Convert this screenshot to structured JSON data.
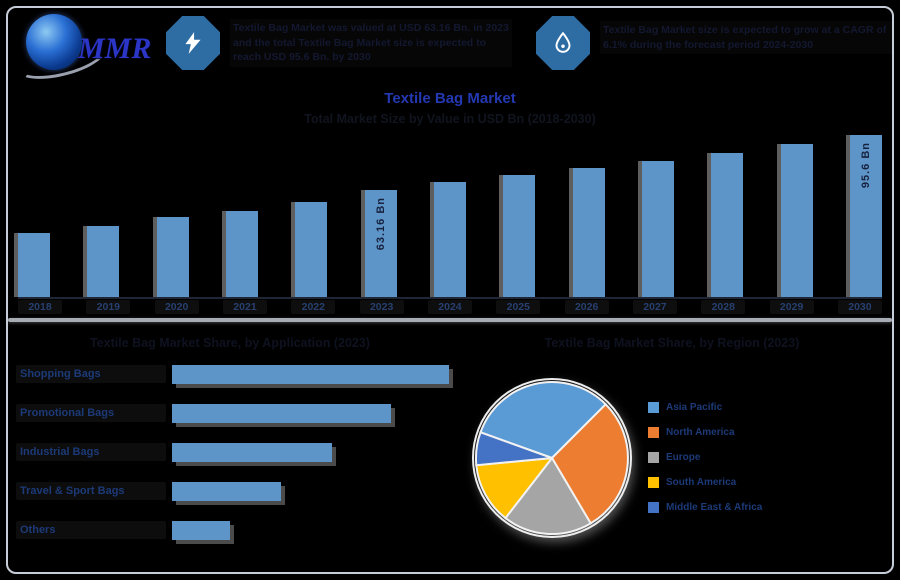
{
  "brand": {
    "name": "MMR"
  },
  "header": {
    "stat1": {
      "icon": "lightning-icon",
      "text": "Textile Bag Market was valued at USD 63.16 Bn. in 2023 and the total Textile Bag Market size is expected to reach USD 95.6 Bn. by 2030"
    },
    "stat2": {
      "icon": "droplet-icon",
      "text": "Textile Bag Market size is expected to grow at a CAGR of 6.1% during the forecast period 2024-2030"
    }
  },
  "main_chart": {
    "title": "Textile Bag Market",
    "subtitle": "Total Market Size by Value in USD Bn (2018-2030)"
  },
  "bottom_left": {
    "title": "Textile Bag Market Share, by Application (2023)"
  },
  "bottom_right": {
    "title": "Textile Bag Market Share, by Region (2023)"
  },
  "colors": {
    "bar_fill": "#5e95c9",
    "badge_fill": "#2e6da4",
    "title_blue": "#2438b2",
    "label_navy": "#1c3a78",
    "pie": [
      "#5b9bd5",
      "#ed7d31",
      "#a5a5a5",
      "#ffc000",
      "#4472c4"
    ]
  },
  "chart_data": [
    {
      "id": "market_size_by_year",
      "type": "bar",
      "title": "Textile Bag Market",
      "subtitle": "Total Market Size by Value in USD Bn (2018-2030)",
      "ylabel": "USD Bn",
      "categories": [
        "2018",
        "2019",
        "2020",
        "2021",
        "2022",
        "2023",
        "2024",
        "2025",
        "2026",
        "2027",
        "2028",
        "2029",
        "2030"
      ],
      "values": [
        38,
        42,
        47,
        51,
        56,
        63.16,
        68,
        72,
        76,
        80,
        85,
        90,
        95.6
      ],
      "data_labels": {
        "2023": "63.16 Bn",
        "2030": "95.6 Bn"
      },
      "note": "only 2023 and 2030 carry printed value labels; other values estimated from bar heights",
      "ylim": [
        0,
        100
      ],
      "grid": false
    },
    {
      "id": "share_by_application",
      "type": "bar",
      "orientation": "horizontal",
      "title": "Textile Bag Market Share, by Application (2023)",
      "categories": [
        "Shopping Bags",
        "Promotional Bags",
        "Industrial Bags",
        "Travel & Sport Bags",
        "Others"
      ],
      "values_pct_est": [
        38,
        30,
        22,
        15,
        8
      ],
      "note": "bars unlabeled; percentages estimated from bar lengths",
      "grid": false
    },
    {
      "id": "share_by_region",
      "type": "pie",
      "title": "Textile Bag Market Share, by Region (2023)",
      "labels": [
        "Asia Pacific",
        "North America",
        "Europe",
        "South America",
        "Middle East & Africa"
      ],
      "values_pct_est": [
        32,
        29,
        19,
        13,
        7
      ],
      "colors": [
        "#5b9bd5",
        "#ed7d31",
        "#a5a5a5",
        "#ffc000",
        "#4472c4"
      ],
      "legend_position": "right",
      "start_angle_deg_clockwise_from_top": 289.8,
      "note": "slices unlabeled; percentages estimated from slice angles"
    }
  ]
}
